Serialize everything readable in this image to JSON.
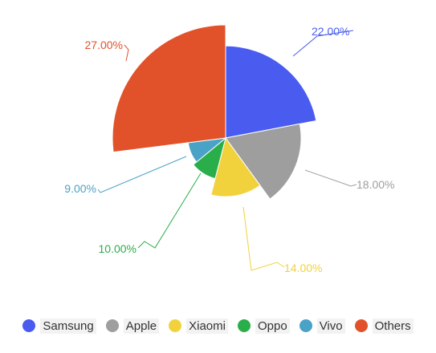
{
  "chart_data": {
    "type": "pie",
    "variant": "polar-area (radius proportional to value)",
    "categories": [
      "Samsung",
      "Apple",
      "Xiaomi",
      "Oppo",
      "Vivo",
      "Others"
    ],
    "values": [
      22.0,
      18.0,
      14.0,
      10.0,
      9.0,
      27.0
    ],
    "labels": [
      "22.00%",
      "18.00%",
      "14.00%",
      "10.00%",
      "9.00%",
      "27.00%"
    ],
    "colors": [
      "#4a5cf0",
      "#9e9e9e",
      "#f2d23c",
      "#2aae4a",
      "#4aa3c6",
      "#e2522a"
    ],
    "legend_position": "bottom",
    "title": "",
    "xlabel": "",
    "ylabel": ""
  }
}
